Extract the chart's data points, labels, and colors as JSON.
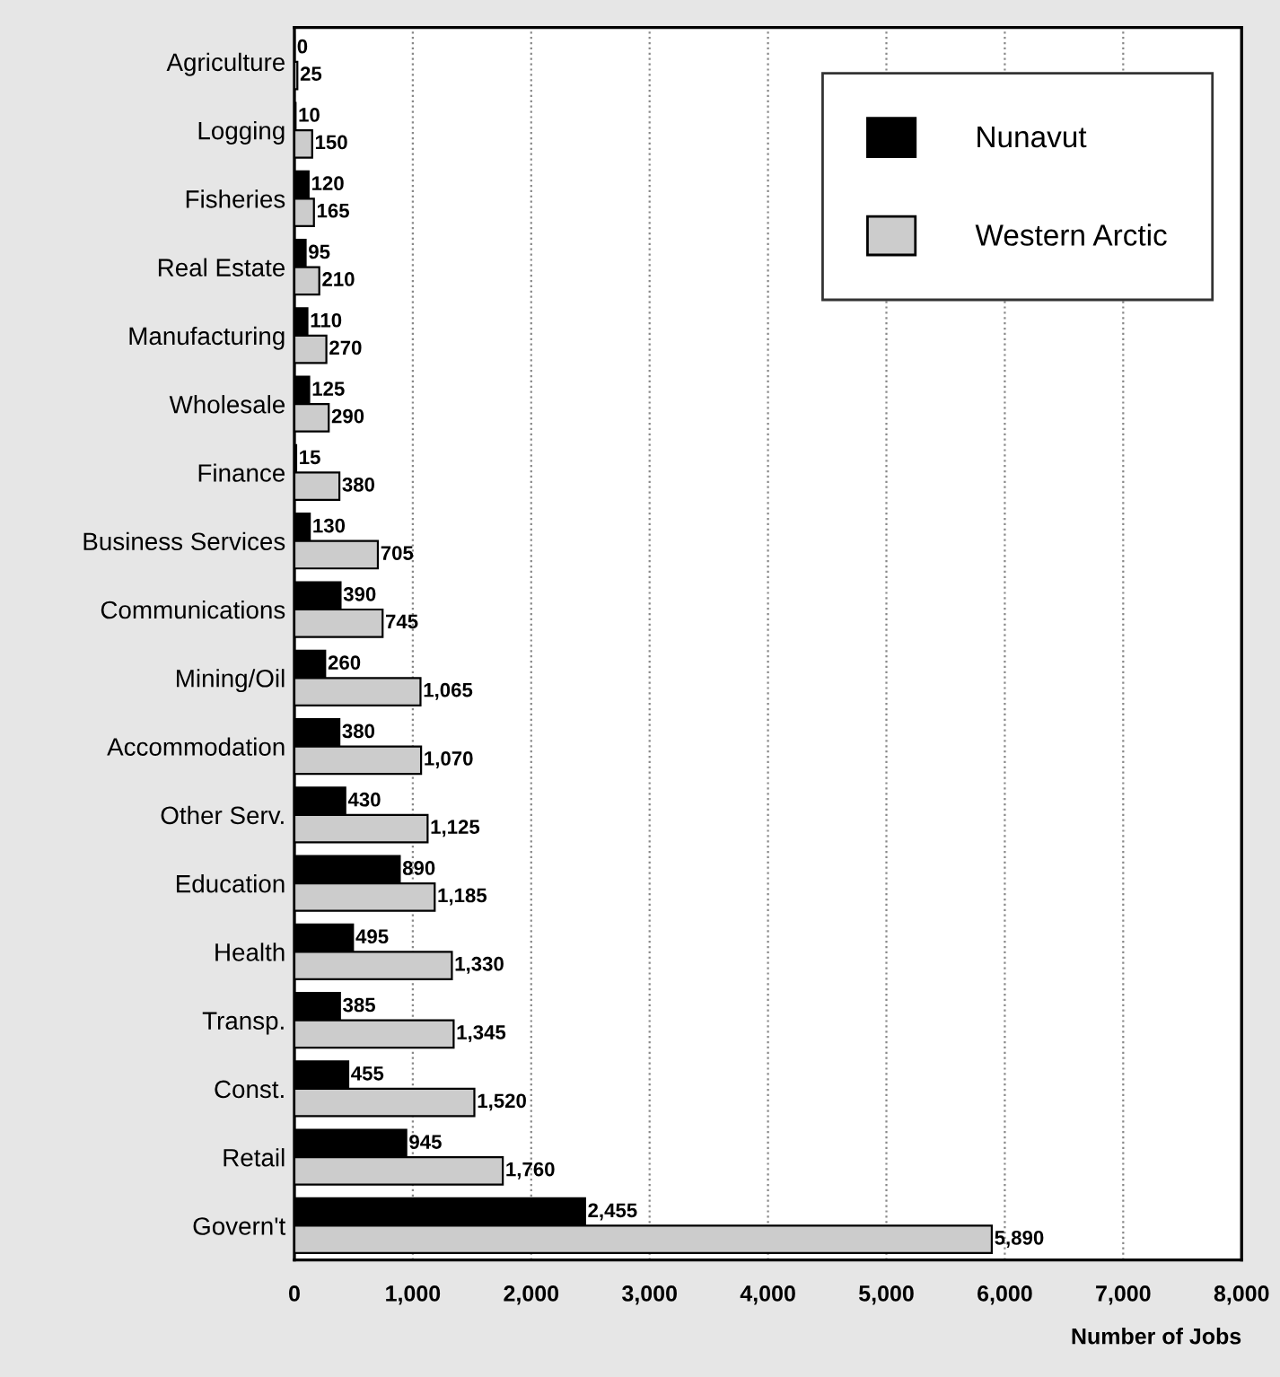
{
  "chart_data": {
    "type": "bar",
    "orientation": "horizontal",
    "xlabel": "Number of Jobs",
    "categories": [
      "Agriculture",
      "Logging",
      "Fisheries",
      "Real Estate",
      "Manufacturing",
      "Wholesale",
      "Finance",
      "Business Services",
      "Communications",
      "Mining/Oil",
      "Accommodation",
      "Other Serv.",
      "Education",
      "Health",
      "Transp.",
      "Const.",
      "Retail",
      "Govern't"
    ],
    "series": [
      {
        "name": "Nunavut",
        "color": "#000000",
        "values": [
          0,
          10,
          120,
          95,
          110,
          125,
          15,
          130,
          390,
          260,
          380,
          430,
          890,
          495,
          385,
          455,
          945,
          2455
        ],
        "value_labels": [
          "0",
          "10",
          "120",
          "95",
          "110",
          "125",
          "15",
          "130",
          "390",
          "260",
          "380",
          "430",
          "890",
          "495",
          "385",
          "455",
          "945",
          "2,455"
        ]
      },
      {
        "name": "Western Arctic",
        "color": "#cccccc",
        "values": [
          25,
          150,
          165,
          210,
          270,
          290,
          380,
          705,
          745,
          1065,
          1070,
          1125,
          1185,
          1330,
          1345,
          1520,
          1760,
          5890
        ],
        "value_labels": [
          "25",
          "150",
          "165",
          "210",
          "270",
          "290",
          "380",
          "705",
          "745",
          "1,065",
          "1,070",
          "1,125",
          "1,185",
          "1,330",
          "1,345",
          "1,520",
          "1,760",
          "5,890"
        ]
      }
    ],
    "xlim": [
      0,
      8000
    ],
    "xticks": [
      {
        "value": 0,
        "label": "0"
      },
      {
        "value": 1000,
        "label": "1,000"
      },
      {
        "value": 2000,
        "label": "2,000"
      },
      {
        "value": 3000,
        "label": "3,000"
      },
      {
        "value": 4000,
        "label": "4,000"
      },
      {
        "value": 5000,
        "label": "5,000"
      },
      {
        "value": 6000,
        "label": "6,000"
      },
      {
        "value": 7000,
        "label": "7,000"
      },
      {
        "value": 8000,
        "label": "8,000"
      }
    ],
    "grid": "x",
    "legend": "top right"
  }
}
